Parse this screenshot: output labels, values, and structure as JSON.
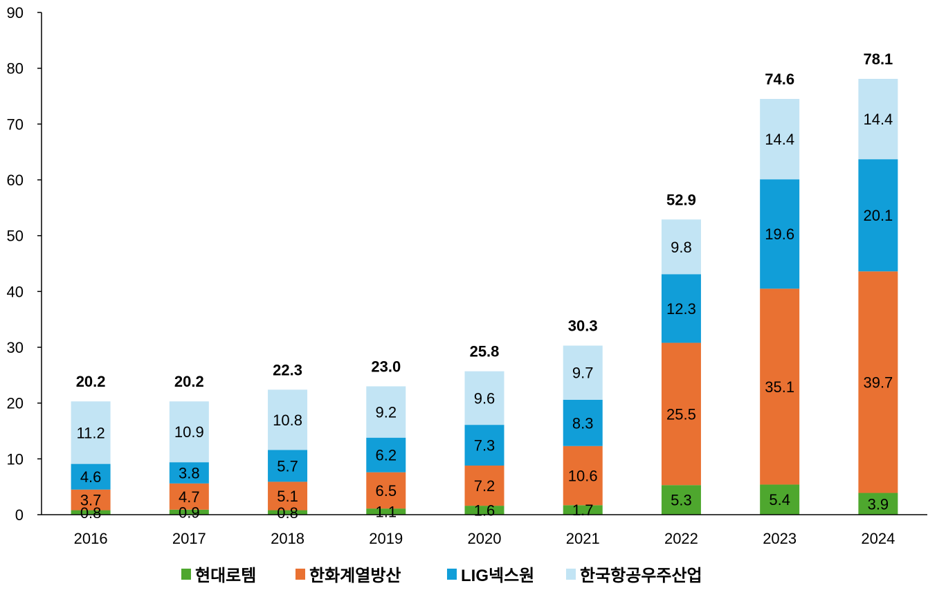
{
  "chart_data": {
    "type": "bar",
    "stacked": true,
    "categories": [
      "2016",
      "2017",
      "2018",
      "2019",
      "2020",
      "2021",
      "2022",
      "2023",
      "2024"
    ],
    "series": [
      {
        "name": "현대로템",
        "color": "#4ea72e",
        "values": [
          0.8,
          0.9,
          0.8,
          1.1,
          1.6,
          1.7,
          5.3,
          5.4,
          3.9
        ]
      },
      {
        "name": "한화계열방산",
        "color": "#e97132",
        "values": [
          3.7,
          4.7,
          5.1,
          6.5,
          7.2,
          10.6,
          25.5,
          35.1,
          39.7
        ]
      },
      {
        "name": "LIG넥스원",
        "color": "#119ed8",
        "values": [
          4.6,
          3.8,
          5.7,
          6.2,
          7.3,
          8.3,
          12.3,
          19.6,
          20.1
        ]
      },
      {
        "name": "한국항공우주산업",
        "color": "#c2e4f4",
        "values": [
          11.2,
          10.9,
          10.8,
          9.2,
          9.6,
          9.7,
          9.8,
          14.4,
          14.4
        ]
      }
    ],
    "totals": [
      "20.2",
      "20.2",
      "22.3",
      "23.0",
      "25.8",
      "30.3",
      "52.9",
      "74.6",
      "78.1"
    ],
    "segment_labels": [
      [
        "0.8",
        "0.9",
        "0.8",
        "1.1",
        "1.6",
        "1.7",
        "5.3",
        "5.4",
        "3.9"
      ],
      [
        "3.7",
        "4.7",
        "5.1",
        "6.5",
        "7.2",
        "10.6",
        "25.5",
        "35.1",
        "39.7"
      ],
      [
        "4.6",
        "3.8",
        "5.7",
        "6.2",
        "7.3",
        "8.3",
        "12.3",
        "19.6",
        "20.1"
      ],
      [
        "11.2",
        "10.9",
        "10.8",
        "9.2",
        "9.6",
        "9.7",
        "9.8",
        "14.4",
        "14.4"
      ]
    ],
    "yticks": [
      "0",
      "10",
      "20",
      "30",
      "40",
      "50",
      "60",
      "70",
      "80",
      "90"
    ],
    "ylim": [
      0,
      90
    ],
    "title": "",
    "xlabel": "",
    "ylabel": "",
    "grid": false,
    "legend_position": "bottom"
  }
}
